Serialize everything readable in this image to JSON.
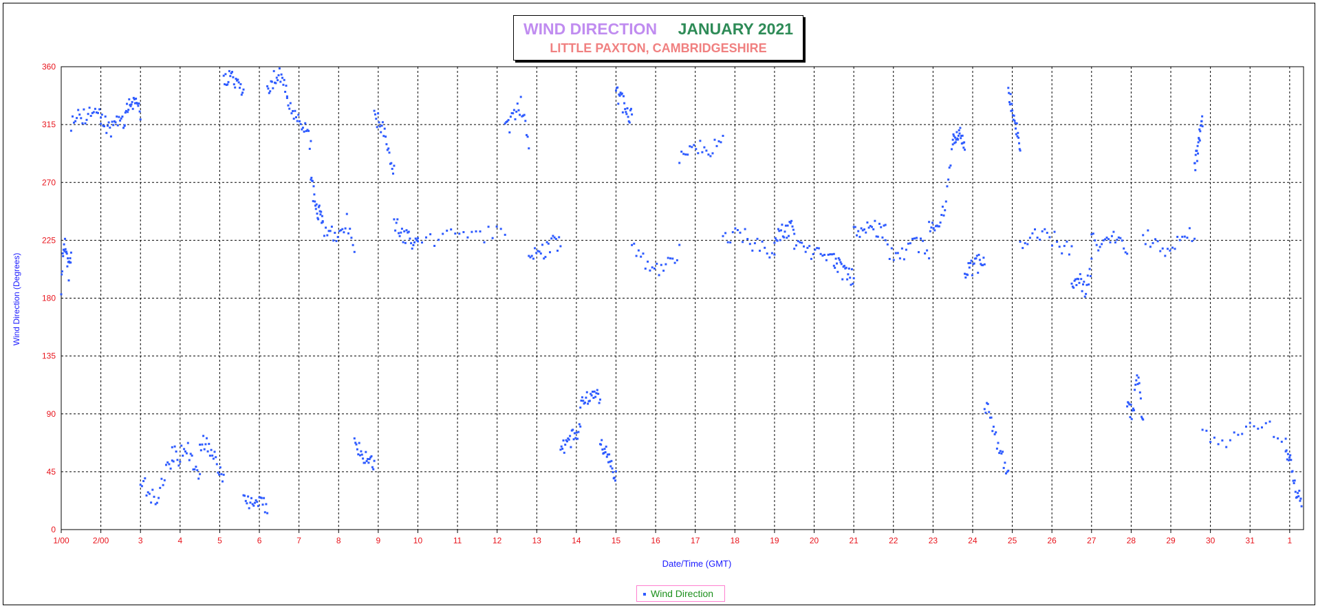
{
  "chart_data": {
    "type": "scatter",
    "title": "WIND DIRECTION",
    "title_period": "JANUARY 2021",
    "subtitle": "LITTLE PAXTON, CAMBRIDGESHIRE",
    "xlabel": "Date/Time (GMT)",
    "ylabel": "Wind Direction (Degrees)",
    "ylim": [
      0,
      360
    ],
    "xlim": [
      1,
      32.35
    ],
    "y_ticks": [
      "0",
      "45",
      "90",
      "135",
      "180",
      "225",
      "270",
      "315",
      "360"
    ],
    "x_ticks": [
      "1/00",
      "2/00",
      "3",
      "4",
      "5",
      "6",
      "7",
      "8",
      "9",
      "10",
      "11",
      "12",
      "13",
      "14",
      "15",
      "16",
      "17",
      "18",
      "19",
      "20",
      "21",
      "22",
      "23",
      "24",
      "25",
      "26",
      "27",
      "28",
      "29",
      "30",
      "31",
      "1"
    ],
    "grid": true,
    "legend_position": "bottom-center",
    "series": [
      {
        "name": "Wind Direction",
        "color": "#2e5bff",
        "segments": [
          {
            "start": 1.0,
            "end": 1.25,
            "values": [
              190,
              225,
              215,
              200,
              210
            ]
          },
          {
            "start": 1.25,
            "end": 2.0,
            "values": [
              315,
              325,
              320,
              330,
              322
            ]
          },
          {
            "start": 2.0,
            "end": 2.6,
            "values": [
              320,
              315,
              310,
              320,
              318
            ]
          },
          {
            "start": 2.6,
            "end": 3.0,
            "values": [
              320,
              330,
              335,
              325
            ]
          },
          {
            "start": 3.0,
            "end": 3.8,
            "values": [
              40,
              30,
              20,
              45,
              50
            ]
          },
          {
            "start": 3.8,
            "end": 4.5,
            "values": [
              60,
              55,
              65,
              50,
              45
            ]
          },
          {
            "start": 4.5,
            "end": 5.1,
            "values": [
              65,
              70,
              60,
              50,
              40
            ]
          },
          {
            "start": 5.1,
            "end": 5.6,
            "values": [
              350,
              355,
              345,
              340
            ]
          },
          {
            "start": 5.6,
            "end": 6.2,
            "values": [
              30,
              20,
              15,
              25,
              10
            ]
          },
          {
            "start": 6.2,
            "end": 6.7,
            "values": [
              345,
              350,
              355,
              340
            ]
          },
          {
            "start": 6.7,
            "end": 7.3,
            "values": [
              330,
              320,
              315,
              300
            ]
          },
          {
            "start": 7.3,
            "end": 7.6,
            "values": [
              270,
              250,
              240
            ]
          },
          {
            "start": 7.6,
            "end": 8.4,
            "values": [
              235,
              230,
              225,
              240,
              220
            ]
          },
          {
            "start": 8.4,
            "end": 8.9,
            "values": [
              70,
              60,
              55,
              50
            ]
          },
          {
            "start": 8.9,
            "end": 9.4,
            "values": [
              320,
              315,
              300,
              280
            ]
          },
          {
            "start": 9.4,
            "end": 10.0,
            "values": [
              240,
              230,
              225,
              220
            ]
          },
          {
            "start": 10.0,
            "end": 12.2,
            "values": [
              225,
              228,
              232,
              230,
              235
            ]
          },
          {
            "start": 12.2,
            "end": 12.8,
            "values": [
              310,
              320,
              330,
              300
            ]
          },
          {
            "start": 12.8,
            "end": 13.6,
            "values": [
              210,
              215,
              220,
              225
            ]
          },
          {
            "start": 13.6,
            "end": 14.1,
            "values": [
              60,
              70,
              80
            ]
          },
          {
            "start": 14.1,
            "end": 14.6,
            "values": [
              95,
              100,
              105,
              100
            ]
          },
          {
            "start": 14.6,
            "end": 15.0,
            "values": [
              70,
              60,
              50,
              40
            ]
          },
          {
            "start": 15.0,
            "end": 15.4,
            "values": [
              340,
              330,
              320
            ]
          },
          {
            "start": 15.4,
            "end": 16.6,
            "values": [
              220,
              210,
              200,
              205,
              215
            ]
          },
          {
            "start": 16.6,
            "end": 17.7,
            "values": [
              290,
              300,
              295,
              305
            ]
          },
          {
            "start": 17.7,
            "end": 19.0,
            "values": [
              225,
              230,
              220,
              215
            ]
          },
          {
            "start": 19.0,
            "end": 19.5,
            "values": [
              230,
              232,
              235
            ]
          },
          {
            "start": 19.5,
            "end": 20.5,
            "values": [
              220,
              218,
              215,
              212
            ]
          },
          {
            "start": 20.5,
            "end": 21.0,
            "values": [
              210,
              200,
              195
            ]
          },
          {
            "start": 21.0,
            "end": 21.8,
            "values": [
              230,
              232,
              235,
              230
            ]
          },
          {
            "start": 21.8,
            "end": 22.9,
            "values": [
              220,
              210,
              225,
              215
            ]
          },
          {
            "start": 22.9,
            "end": 23.5,
            "values": [
              240,
              230,
              250,
              300
            ]
          },
          {
            "start": 23.5,
            "end": 23.8,
            "values": [
              300,
              310,
              295
            ]
          },
          {
            "start": 23.8,
            "end": 24.3,
            "values": [
              200,
              205,
              210
            ]
          },
          {
            "start": 24.3,
            "end": 24.9,
            "values": [
              100,
              80,
              60,
              40
            ]
          },
          {
            "start": 24.9,
            "end": 25.2,
            "values": [
              340,
              320,
              300
            ]
          },
          {
            "start": 25.2,
            "end": 26.5,
            "values": [
              220,
              230,
              225,
              215
            ]
          },
          {
            "start": 26.5,
            "end": 27.0,
            "values": [
              190,
              200,
              185,
              205
            ]
          },
          {
            "start": 27.0,
            "end": 27.9,
            "values": [
              225,
              220,
              230,
              215
            ]
          },
          {
            "start": 27.9,
            "end": 28.3,
            "values": [
              100,
              90,
              120,
              80
            ]
          },
          {
            "start": 28.3,
            "end": 29.6,
            "values": [
              230,
              220,
              215,
              225,
              232
            ]
          },
          {
            "start": 29.6,
            "end": 29.8,
            "values": [
              280,
              300,
              320
            ]
          },
          {
            "start": 29.8,
            "end": 31.9,
            "values": [
              72,
              70,
              75,
              80,
              68
            ]
          },
          {
            "start": 31.9,
            "end": 32.3,
            "values": [
              60,
              50,
              30,
              20
            ]
          }
        ]
      }
    ]
  }
}
